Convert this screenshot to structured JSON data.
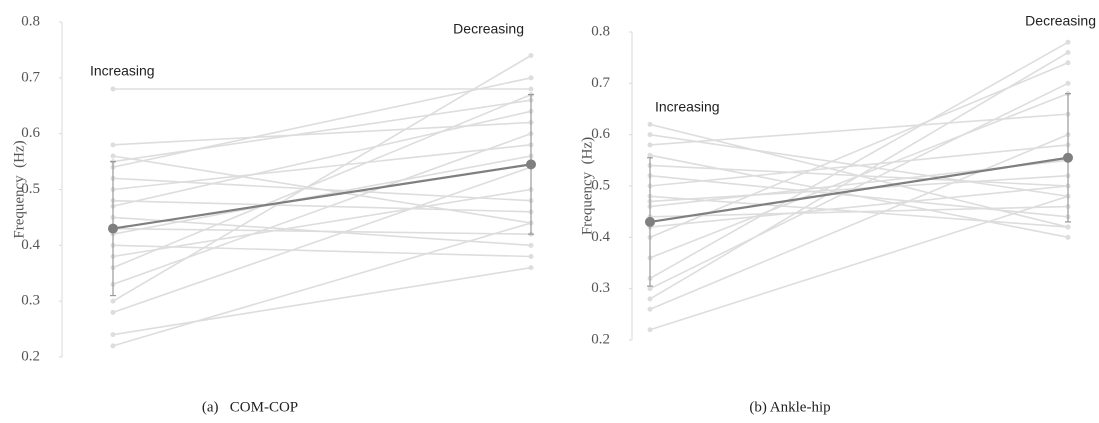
{
  "chart_data": [
    {
      "type": "line",
      "caption": "(a)   COM-COP",
      "ylabel": "Frequency  (Hz)",
      "categories": [
        "Increasing",
        "Decreasing"
      ],
      "ylim": [
        0.2,
        0.8
      ],
      "yticks": [
        0.2,
        0.3,
        0.4,
        0.5,
        0.6,
        0.7,
        0.8
      ],
      "series": [
        {
          "color": "#dddddd",
          "values": [
            0.68,
            0.68
          ]
        },
        {
          "color": "#dddddd",
          "values": [
            0.58,
            0.62
          ]
        },
        {
          "color": "#dddddd",
          "values": [
            0.56,
            0.44
          ]
        },
        {
          "color": "#dddddd",
          "values": [
            0.55,
            0.66
          ]
        },
        {
          "color": "#dddddd",
          "values": [
            0.54,
            0.7
          ]
        },
        {
          "color": "#dddddd",
          "values": [
            0.52,
            0.48
          ]
        },
        {
          "color": "#dddddd",
          "values": [
            0.5,
            0.58
          ]
        },
        {
          "color": "#dddddd",
          "values": [
            0.48,
            0.46
          ]
        },
        {
          "color": "#dddddd",
          "values": [
            0.47,
            0.64
          ]
        },
        {
          "color": "#dddddd",
          "values": [
            0.45,
            0.4
          ]
        },
        {
          "color": "#dddddd",
          "values": [
            0.43,
            0.42
          ]
        },
        {
          "color": "#dddddd",
          "values": [
            0.42,
            0.56
          ]
        },
        {
          "color": "#dddddd",
          "values": [
            0.4,
            0.38
          ]
        },
        {
          "color": "#dddddd",
          "values": [
            0.38,
            0.5
          ]
        },
        {
          "color": "#dddddd",
          "values": [
            0.36,
            0.67
          ]
        },
        {
          "color": "#dddddd",
          "values": [
            0.33,
            0.6
          ]
        },
        {
          "color": "#dddddd",
          "values": [
            0.3,
            0.74
          ]
        },
        {
          "color": "#dddddd",
          "values": [
            0.28,
            0.54
          ]
        },
        {
          "color": "#dddddd",
          "values": [
            0.24,
            0.36
          ]
        },
        {
          "color": "#dddddd",
          "values": [
            0.22,
            0.44
          ]
        }
      ],
      "mean": {
        "color": "#7f7f7f",
        "values": [
          0.43,
          0.545
        ],
        "yerr": [
          0.12,
          0.125
        ]
      }
    },
    {
      "type": "line",
      "caption": "(b) Ankle-hip",
      "ylabel": "Frequency  (Hz)",
      "categories": [
        "Increasing",
        "Decreasing"
      ],
      "ylim": [
        0.2,
        0.8
      ],
      "yticks": [
        0.2,
        0.3,
        0.4,
        0.5,
        0.6,
        0.7,
        0.8
      ],
      "series": [
        {
          "color": "#dddddd",
          "values": [
            0.62,
            0.42
          ]
        },
        {
          "color": "#dddddd",
          "values": [
            0.6,
            0.48
          ]
        },
        {
          "color": "#dddddd",
          "values": [
            0.58,
            0.64
          ]
        },
        {
          "color": "#dddddd",
          "values": [
            0.56,
            0.4
          ]
        },
        {
          "color": "#dddddd",
          "values": [
            0.54,
            0.5
          ]
        },
        {
          "color": "#dddddd",
          "values": [
            0.52,
            0.44
          ]
        },
        {
          "color": "#dddddd",
          "values": [
            0.5,
            0.58
          ]
        },
        {
          "color": "#dddddd",
          "values": [
            0.48,
            0.42
          ]
        },
        {
          "color": "#dddddd",
          "values": [
            0.47,
            0.52
          ]
        },
        {
          "color": "#dddddd",
          "values": [
            0.46,
            0.55
          ]
        },
        {
          "color": "#dddddd",
          "values": [
            0.44,
            0.46
          ]
        },
        {
          "color": "#dddddd",
          "values": [
            0.42,
            0.5
          ]
        },
        {
          "color": "#dddddd",
          "values": [
            0.4,
            0.74
          ]
        },
        {
          "color": "#dddddd",
          "values": [
            0.36,
            0.68
          ]
        },
        {
          "color": "#dddddd",
          "values": [
            0.32,
            0.78
          ]
        },
        {
          "color": "#dddddd",
          "values": [
            0.3,
            0.7
          ]
        },
        {
          "color": "#dddddd",
          "values": [
            0.28,
            0.76
          ]
        },
        {
          "color": "#dddddd",
          "values": [
            0.26,
            0.6
          ]
        },
        {
          "color": "#dddddd",
          "values": [
            0.22,
            0.48
          ]
        }
      ],
      "mean": {
        "color": "#7f7f7f",
        "values": [
          0.43,
          0.555
        ],
        "yerr": [
          0.125,
          0.125
        ]
      }
    }
  ]
}
